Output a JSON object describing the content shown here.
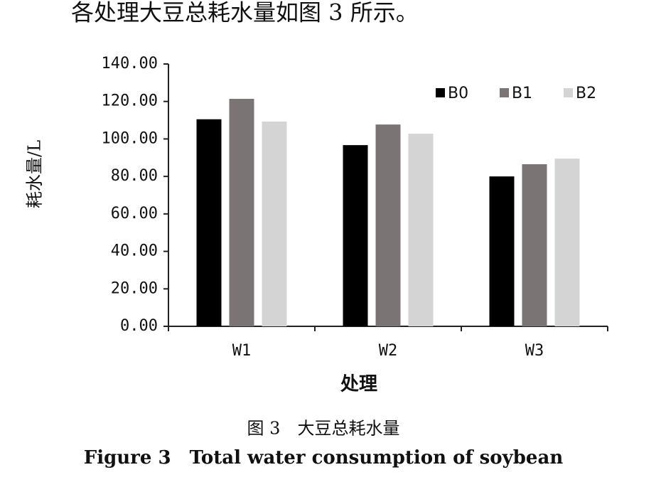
{
  "intro_text": "各处理大豆总耗水量如图 3 所示。",
  "chart_data": {
    "type": "bar",
    "x_label": "处理",
    "y_label": "耗水量/L",
    "categories": [
      "W1",
      "W2",
      "W3"
    ],
    "series": [
      {
        "name": "B0",
        "color": "#000000",
        "values": [
          110.5,
          96.7,
          80.0
        ]
      },
      {
        "name": "B1",
        "color": "#7a7574",
        "values": [
          121.4,
          107.7,
          86.5
        ]
      },
      {
        "name": "B2",
        "color": "#d4d4d4",
        "values": [
          109.3,
          102.8,
          89.5
        ]
      }
    ],
    "ylim": [
      0,
      140
    ],
    "yticks": [
      {
        "value": 0,
        "label": "0.00"
      },
      {
        "value": 20,
        "label": "20.00"
      },
      {
        "value": 40,
        "label": "40.00"
      },
      {
        "value": 60,
        "label": "60.00"
      },
      {
        "value": 80,
        "label": "80.00"
      },
      {
        "value": 100,
        "label": "100.00"
      },
      {
        "value": 120,
        "label": "120.00"
      },
      {
        "value": 140,
        "label": "140.00"
      }
    ],
    "legend": "upper-right"
  },
  "caption": {
    "zh": "图 3　大豆总耗水量",
    "en": "Figure 3　Total water consumption of soybean"
  }
}
